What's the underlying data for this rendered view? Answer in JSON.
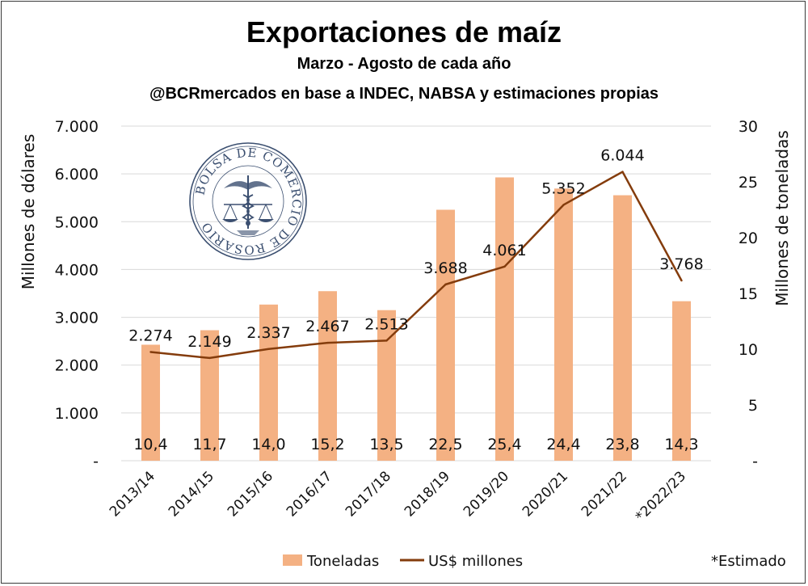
{
  "colors": {
    "bar": "#f4b183",
    "line": "#843c0c",
    "grid": "#d9d9d9",
    "seal": "#3b4f70"
  },
  "seal": {
    "text": "BOLSA DE COMERCIO DE ROSARIO",
    "icon": "caduceus-scales-seal-icon"
  },
  "chart_data": {
    "type": "bar+line",
    "title": "Exportaciones de maíz",
    "subtitle": "Marzo - Agosto de cada año",
    "source": "@BCRmercados en base a INDEC, NABSA y estimaciones propias",
    "categories": [
      "2013/14",
      "2014/15",
      "2015/16",
      "2016/17",
      "2017/18",
      "2018/19",
      "2019/20",
      "2020/21",
      "2021/22",
      "*2022/23"
    ],
    "series": [
      {
        "name": "Toneladas",
        "type": "bar",
        "axis": "right",
        "values": [
          10.4,
          11.7,
          14.0,
          15.2,
          13.5,
          22.5,
          25.4,
          24.4,
          23.8,
          14.3
        ],
        "labels": [
          "10,4",
          "11,7",
          "14,0",
          "15,2",
          "13,5",
          "22,5",
          "25,4",
          "24,4",
          "23,8",
          "14,3"
        ]
      },
      {
        "name": "US$ millones",
        "type": "line",
        "axis": "left",
        "values": [
          2274,
          2149,
          2337,
          2467,
          2513,
          3688,
          4061,
          5352,
          6044,
          3768
        ],
        "labels": [
          "2.274",
          "2.149",
          "2.337",
          "2.467",
          "2.513",
          "3.688",
          "4.061",
          "5.352",
          "6.044",
          "3.768"
        ]
      }
    ],
    "ylabel": "Millones de dólares",
    "y2label": "Millones de toneladas",
    "ylim": [
      0,
      7000
    ],
    "y2lim": [
      0,
      30
    ],
    "yticks": [
      "-",
      "1.000",
      "2.000",
      "3.000",
      "4.000",
      "5.000",
      "6.000",
      "7.000"
    ],
    "y2ticks": [
      "-",
      "5",
      "10",
      "15",
      "20",
      "25",
      "30"
    ],
    "grid": true,
    "legend_position": "bottom",
    "footnote": "*Estimado"
  }
}
